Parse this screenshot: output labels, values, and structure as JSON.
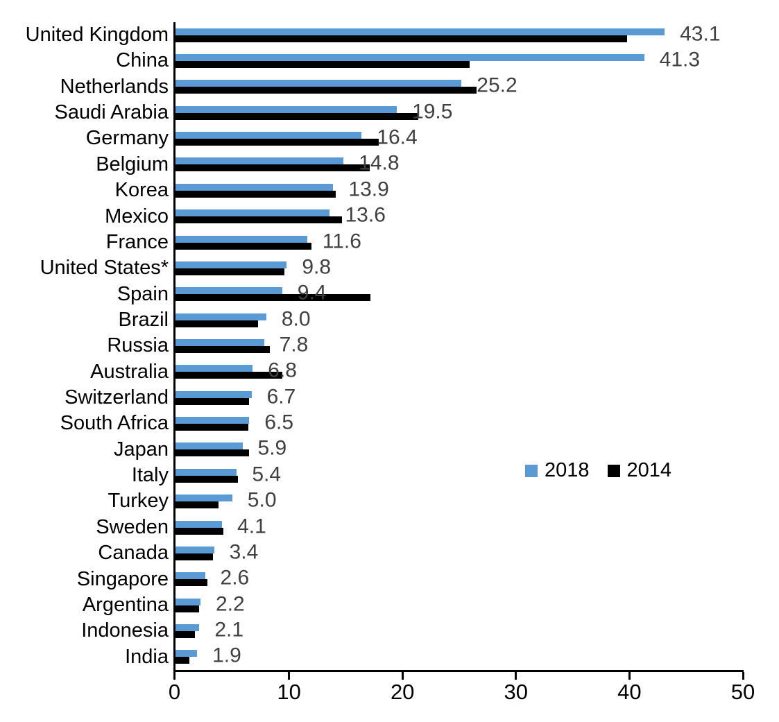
{
  "chart_data": {
    "type": "bar",
    "orientation": "horizontal",
    "title": "",
    "xlabel": "",
    "ylabel": "",
    "grid": false,
    "xlim": [
      0,
      50
    ],
    "x_ticks": [
      0,
      10,
      20,
      30,
      40,
      50
    ],
    "legend_position": "center-right",
    "categories": [
      "United Kingdom",
      "China",
      "Netherlands",
      "Saudi Arabia",
      "Germany",
      "Belgium",
      "Korea",
      "Mexico",
      "France",
      "United States*",
      "Spain",
      "Brazil",
      "Russia",
      "Australia",
      "Switzerland",
      "South Africa",
      "Japan",
      "Italy",
      "Turkey",
      "Sweden",
      "Canada",
      "Singapore",
      "Argentina",
      "Indonesia",
      "India"
    ],
    "series": [
      {
        "name": "2018",
        "color": "#5B9BD5",
        "values": [
          43.1,
          41.3,
          25.2,
          19.5,
          16.4,
          14.8,
          13.9,
          13.6,
          11.6,
          9.8,
          9.4,
          8.0,
          7.8,
          6.8,
          6.7,
          6.5,
          5.9,
          5.4,
          5.0,
          4.1,
          3.4,
          2.6,
          2.2,
          2.1,
          1.9
        ]
      },
      {
        "name": "2014",
        "color": "#000000",
        "values": [
          39.8,
          25.9,
          26.5,
          21.4,
          17.9,
          17.1,
          14.1,
          14.7,
          12.0,
          9.6,
          17.2,
          7.3,
          8.3,
          9.4,
          6.5,
          6.4,
          6.5,
          5.5,
          3.8,
          4.2,
          3.3,
          2.8,
          2.1,
          1.7,
          1.2
        ]
      }
    ],
    "data_labels": {
      "series": "2018",
      "color": "#404040",
      "values": [
        "43.1",
        "41.3",
        "25.2",
        "19.5",
        "16.4",
        "14.8",
        "13.9",
        "13.6",
        "11.6",
        "9.8",
        "9.4",
        "8.0",
        "7.8",
        "6.8",
        "6.7",
        "6.5",
        "5.9",
        "5.4",
        "5.0",
        "4.1",
        "3.4",
        "2.6",
        "2.2",
        "2.1",
        "1.9"
      ]
    },
    "legend": {
      "items": [
        {
          "label": "2018",
          "color": "#5B9BD5"
        },
        {
          "label": "2014",
          "color": "#000000"
        }
      ]
    },
    "axis_color": "#000000"
  }
}
